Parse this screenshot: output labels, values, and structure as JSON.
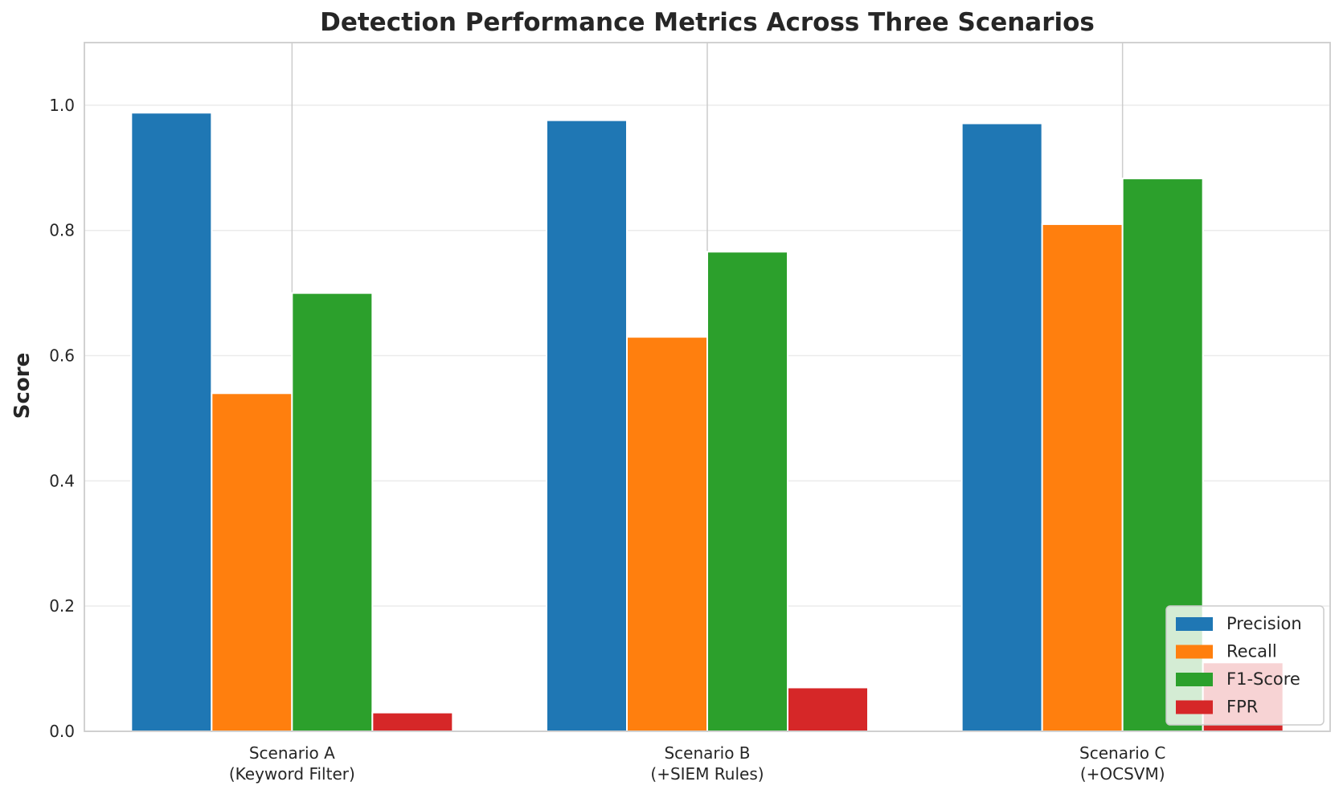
{
  "chart_data": {
    "type": "bar",
    "title": "Detection Performance Metrics Across Three Scenarios",
    "ylabel": "Score",
    "xlabel": "",
    "categories": [
      [
        "Scenario A",
        "(Keyword Filter)"
      ],
      [
        "Scenario B",
        "(+SIEM Rules)"
      ],
      [
        "Scenario C",
        "(+OCSVM)"
      ]
    ],
    "series": [
      {
        "name": "Precision",
        "color": "#1f77b4",
        "values": [
          0.988,
          0.976,
          0.971
        ]
      },
      {
        "name": "Recall",
        "color": "#ff7f0e",
        "values": [
          0.54,
          0.63,
          0.81
        ]
      },
      {
        "name": "F1-Score",
        "color": "#2ca02c",
        "values": [
          0.7,
          0.766,
          0.883
        ]
      },
      {
        "name": "FPR",
        "color": "#d62728",
        "values": [
          0.03,
          0.07,
          0.11
        ]
      }
    ],
    "ylim": [
      0,
      1.1
    ],
    "yticks": [
      0.0,
      0.2,
      0.4,
      0.6,
      0.8,
      1.0
    ],
    "ytick_labels": [
      "0.0",
      "0.2",
      "0.4",
      "0.6",
      "0.8",
      "1.0"
    ],
    "grid": true,
    "legend": "lower-right"
  }
}
